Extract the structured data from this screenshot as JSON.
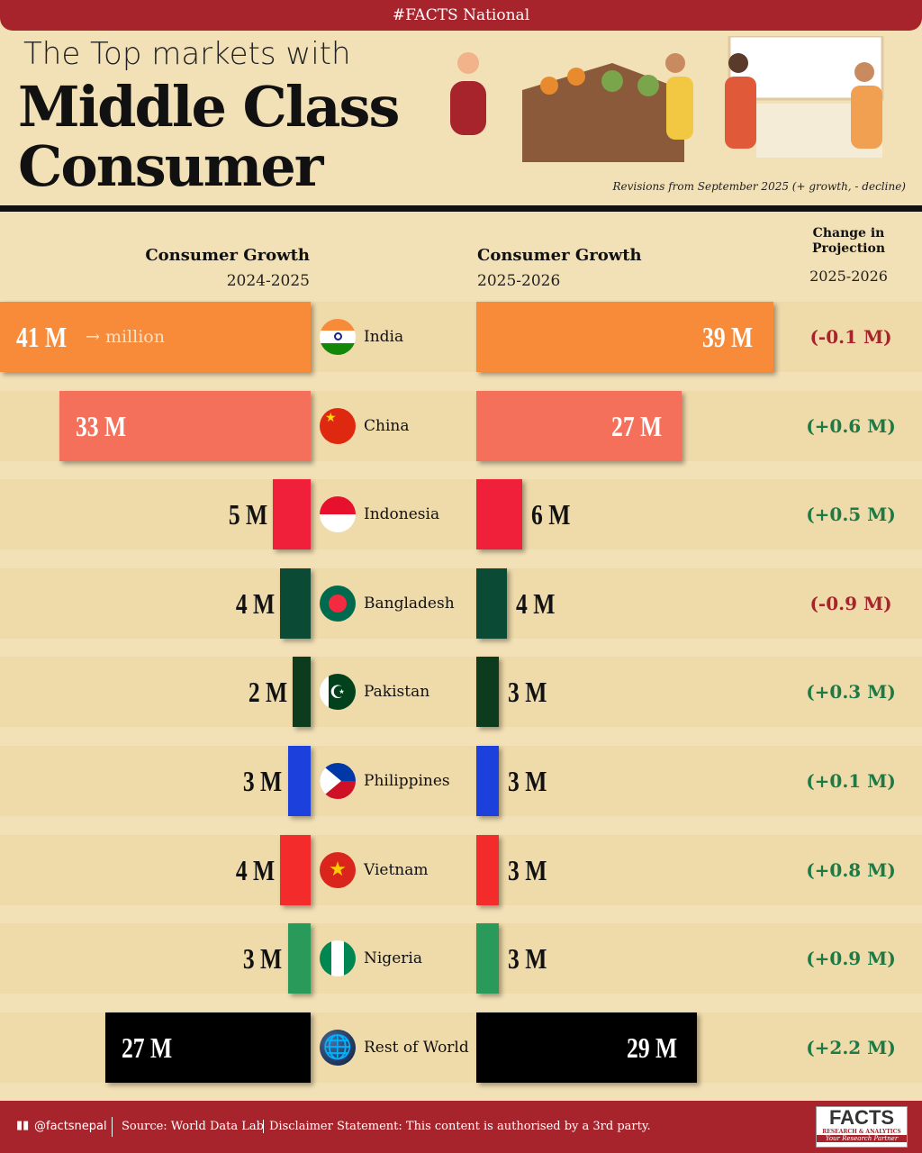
{
  "header": {
    "tag": "#FACTS National",
    "title_line1": "The Top markets with",
    "title_line2": "Middle Class",
    "title_line3": "Consumer",
    "note": "Revisions from September 2025 (+ growth, - decline)"
  },
  "columns": {
    "left_title": "Consumer Growth",
    "left_period": "2024-2025",
    "right_title": "Consumer Growth",
    "right_period": "2025-2026",
    "change_title": "Change in Projection",
    "change_period": "2025-2026",
    "unit_hint": "→ million"
  },
  "chart_data": {
    "type": "bar",
    "categories": [
      "India",
      "China",
      "Indonesia",
      "Bangladesh",
      "Pakistan",
      "Philippines",
      "Vietnam",
      "Nigeria",
      "Rest of World"
    ],
    "series": [
      {
        "name": "Consumer Growth 2024-2025",
        "values": [
          41,
          33,
          5,
          4,
          2,
          3,
          4,
          3,
          27
        ],
        "labels": [
          "41 M",
          "33 M",
          "5 M",
          "4 M",
          "2 M",
          "3 M",
          "4 M",
          "3 M",
          "27 M"
        ]
      },
      {
        "name": "Consumer Growth 2025-2026",
        "values": [
          39,
          27,
          6,
          4,
          3,
          3,
          3,
          3,
          29
        ],
        "labels": [
          "39 M",
          "27 M",
          "6 M",
          "4 M",
          "3 M",
          "3 M",
          "3 M",
          "3 M",
          "29 M"
        ]
      },
      {
        "name": "Change in Projection 2025-2026",
        "values": [
          -0.1,
          0.6,
          0.5,
          -0.9,
          0.3,
          0.1,
          0.8,
          0.9,
          2.2
        ],
        "labels": [
          "(-0.1 M)",
          "(+0.6 M)",
          "(+0.5 M)",
          "(-0.9 M)",
          "(+0.3 M)",
          "(+0.1 M)",
          "(+0.8 M)",
          "(+0.9 M)",
          "(+2.2 M)"
        ]
      }
    ],
    "colors": [
      "#f78b3a",
      "#f5705a",
      "#f01f3a",
      "#0b4a35",
      "#0d3b1e",
      "#1c40dc",
      "#f42b2b",
      "#2a9a5a",
      "#000000"
    ],
    "positive_color": "#1e7a45",
    "negative_color": "#a8242c"
  },
  "footer": {
    "handle": "@factsnepal",
    "source": "Source: World Data Lab",
    "disclaimer": "Disclaimer Statement: This content is authorised by a 3rd party.",
    "logo_text": "FACTS",
    "logo_sub": "RESEARCH & ANALYTICS",
    "logo_tagline": "Your Research Partner"
  }
}
